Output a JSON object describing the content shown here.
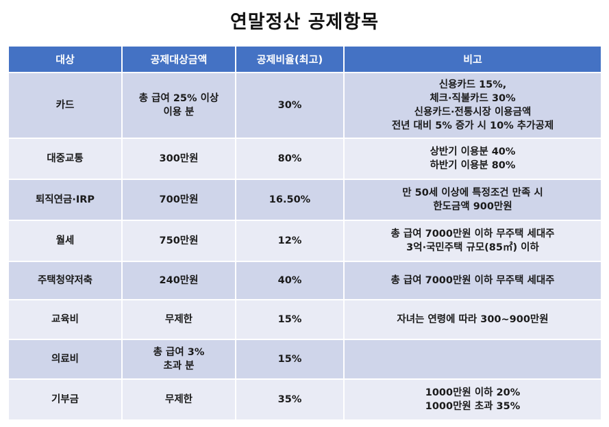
{
  "title": "연말정산 공제항목",
  "headers": [
    "대상",
    "공제대상금액",
    "공제비율(최고)",
    "비고"
  ],
  "rows": [
    {
      "target": "카드",
      "amount": [
        "총 급여 25% 이상",
        "이용 분"
      ],
      "rate": "30%",
      "note": [
        "신용카드 15%,",
        "체크·직불카드 30%",
        "신용카드·전통시장 이용금액",
        "전년 대비 5% 증가 시 10% 추가공제"
      ]
    },
    {
      "target": "대중교통",
      "amount": [
        "300만원"
      ],
      "rate": "80%",
      "note": [
        "상반기 이용분 40%",
        "하반기 이용분 80%"
      ]
    },
    {
      "target": "퇴직연금·IRP",
      "amount": [
        "700만원"
      ],
      "rate": "16.50%",
      "note": [
        "만 50세 이상에 특정조건 만족 시",
        "한도금액 900만원"
      ]
    },
    {
      "target": "월세",
      "amount": [
        "750만원"
      ],
      "rate": "12%",
      "note": [
        "총 급여 7000만원 이하 무주택 세대주",
        "3억·국민주택 규모(85㎡) 이하"
      ]
    },
    {
      "target": "주택청약저축",
      "amount": [
        "240만원"
      ],
      "rate": "40%",
      "note": [
        "총 급여 7000만원 이하 무주택 세대주"
      ]
    },
    {
      "target": "교육비",
      "amount": [
        "무제한"
      ],
      "rate": "15%",
      "note": [
        "자녀는 연령에 따라 300~900만원"
      ]
    },
    {
      "target": "의료비",
      "amount": [
        "총 급여 3%",
        "초과 분"
      ],
      "rate": "15%",
      "note": []
    },
    {
      "target": "기부금",
      "amount": [
        "무제한"
      ],
      "rate": "35%",
      "note": [
        "1000만원 이하 20%",
        "1000만원 초과 35%"
      ]
    }
  ],
  "colors": {
    "header_bg": "#4472c4",
    "row_odd": "#cfd5ea",
    "row_even": "#e9ebf5"
  }
}
